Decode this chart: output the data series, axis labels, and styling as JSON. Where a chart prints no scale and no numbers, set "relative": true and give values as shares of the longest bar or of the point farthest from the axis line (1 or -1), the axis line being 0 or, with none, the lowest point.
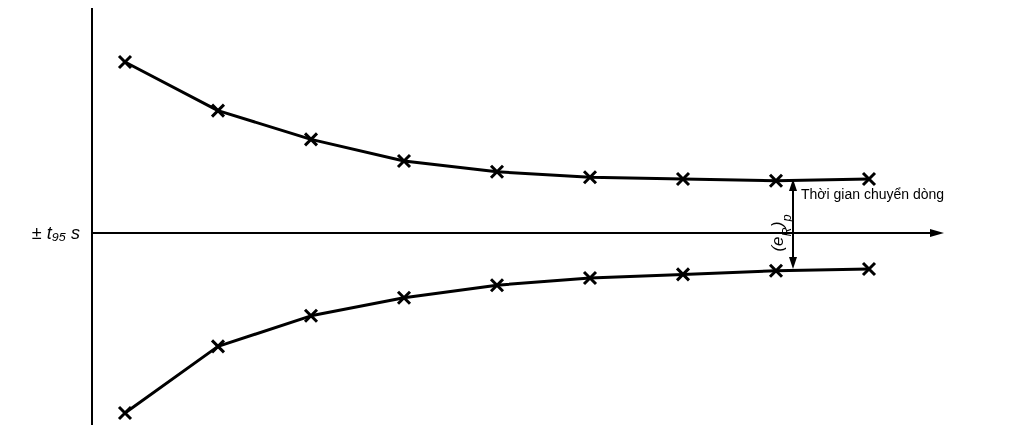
{
  "chart_data": {
    "type": "line",
    "relative": true,
    "xlabel": "Thời gian chuyển dòng",
    "ylabel": "± t₉₅ s",
    "marker": "cross",
    "annotations": [
      "(e$_{R}$)$_{p}$"
    ],
    "categories": [
      null,
      null,
      null,
      null,
      null,
      null,
      null,
      null,
      null
    ],
    "series": [
      {
        "color": "#000000",
        "values": [
          0.95,
          0.68,
          0.52,
          0.4,
          0.34,
          0.31,
          0.3,
          0.29,
          0.3
        ]
      },
      {
        "color": "#000000",
        "values": [
          -1,
          -0.63,
          -0.46,
          -0.36,
          -0.29,
          -0.25,
          -0.23,
          -0.21,
          -0.2
        ]
      }
    ]
  }
}
